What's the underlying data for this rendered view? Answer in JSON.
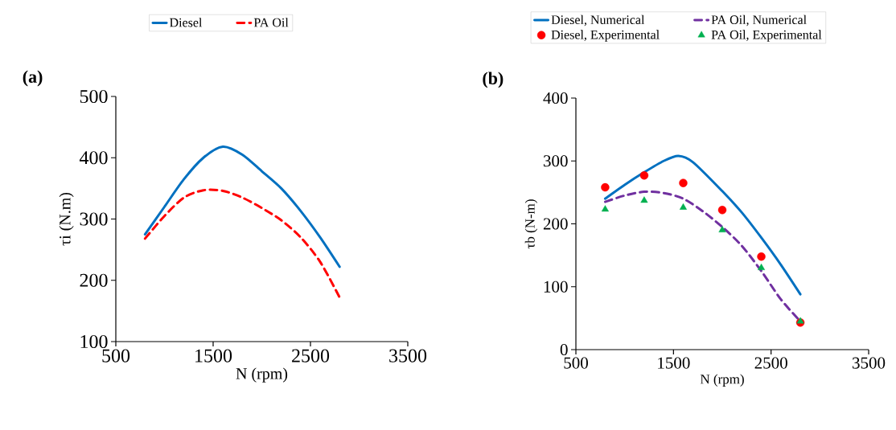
{
  "chart_data": [
    {
      "type": "line",
      "title": "(a)",
      "xlabel": "N (rpm)",
      "ylabel": "τi (N.m)",
      "xlim": [
        500,
        3500
      ],
      "xticks": [
        500,
        1500,
        2500,
        3500
      ],
      "ylim": [
        100,
        500
      ],
      "yticks": [
        100,
        200,
        300,
        400,
        500
      ],
      "grid": false,
      "legend": "top",
      "x": [
        800,
        1000,
        1200,
        1400,
        1600,
        1800,
        2000,
        2200,
        2400,
        2600,
        2800
      ],
      "series": [
        {
          "name": "Diesel",
          "color": "#0070c0",
          "line_style": "solid",
          "values": [
            275,
            320,
            365,
            400,
            418,
            405,
            378,
            350,
            313,
            270,
            222
          ]
        },
        {
          "name": "PA Oil",
          "color": "#ff0000",
          "line_style": "dashed",
          "values": [
            268,
            305,
            335,
            347,
            346,
            335,
            318,
            298,
            270,
            230,
            172
          ]
        }
      ]
    },
    {
      "type": "line",
      "title": "(b)",
      "xlabel": "N (rpm)",
      "ylabel": "τb (N-m)",
      "xlim": [
        500,
        3500
      ],
      "xticks": [
        500,
        1500,
        2500,
        3500
      ],
      "ylim": [
        0,
        400
      ],
      "yticks": [
        0,
        100,
        200,
        300,
        400
      ],
      "grid": false,
      "legend": "top",
      "series": [
        {
          "name": "Diesel, Numerical",
          "type": "line",
          "color": "#0070c0",
          "line_style": "solid",
          "x": [
            800,
            1000,
            1200,
            1400,
            1550,
            1700,
            2000,
            2200,
            2400,
            2600,
            2800
          ],
          "values": [
            240,
            262,
            282,
            300,
            308,
            298,
            252,
            218,
            178,
            135,
            88
          ]
        },
        {
          "name": "PA Oil, Numerical",
          "type": "line",
          "color": "#7030a0",
          "line_style": "dashed",
          "x": [
            800,
            1000,
            1200,
            1400,
            1600,
            1800,
            2000,
            2200,
            2400,
            2600,
            2800
          ],
          "values": [
            235,
            245,
            251,
            249,
            240,
            220,
            195,
            165,
            125,
            80,
            45
          ]
        },
        {
          "name": "Diesel, Experimental",
          "type": "scatter",
          "color": "#ff0000",
          "marker": "circle",
          "x": [
            800,
            1200,
            1600,
            2000,
            2400,
            2800
          ],
          "values": [
            258,
            277,
            265,
            222,
            148,
            43
          ]
        },
        {
          "name": "PA Oil, Experimental",
          "type": "scatter",
          "color": "#00b050",
          "marker": "triangle",
          "x": [
            800,
            1200,
            1600,
            2000,
            2400,
            2800
          ],
          "values": [
            223,
            237,
            226,
            190,
            130,
            45
          ]
        }
      ]
    }
  ]
}
